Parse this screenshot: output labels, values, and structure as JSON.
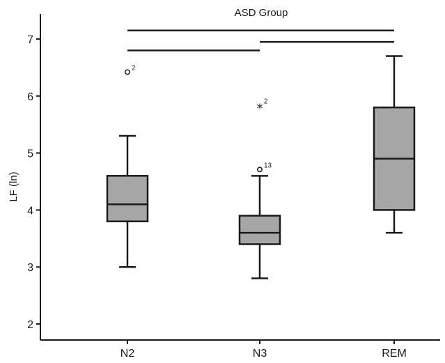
{
  "chart_data": {
    "type": "box",
    "title": "ASD Group",
    "xlabel": "",
    "ylabel": "LF (ln)",
    "ylim": [
      1.85,
      7.35
    ],
    "yticks": [
      "2",
      "3",
      "4",
      "5",
      "6",
      "7"
    ],
    "categories": [
      "N2",
      "N3",
      "REM"
    ],
    "box_color": "#a6a6a6",
    "line_color": "#1a1a1a",
    "boxes": [
      {
        "category": "N2",
        "whisker_low": 3.0,
        "q1": 3.8,
        "median": 4.1,
        "q3": 4.6,
        "whisker_high": 5.3,
        "outliers": [
          {
            "value": 6.42,
            "marker": "circle",
            "label": "2"
          }
        ]
      },
      {
        "category": "N3",
        "whisker_low": 2.8,
        "q1": 3.4,
        "median": 3.6,
        "q3": 3.9,
        "whisker_high": 4.6,
        "outliers": [
          {
            "value": 4.71,
            "marker": "circle",
            "label": "13"
          },
          {
            "value": 5.83,
            "marker": "star",
            "label": "2"
          }
        ]
      },
      {
        "category": "REM",
        "whisker_low": 3.6,
        "q1": 4.0,
        "median": 4.9,
        "q3": 5.8,
        "whisker_high": 6.7,
        "outliers": []
      }
    ],
    "significance_brackets": [
      {
        "from": "N2",
        "to": "REM",
        "level": 7.15
      },
      {
        "from": "N2",
        "to": "N3",
        "level": 6.8
      },
      {
        "from": "N3",
        "to": "REM",
        "level": 6.95
      }
    ],
    "grid": false
  }
}
